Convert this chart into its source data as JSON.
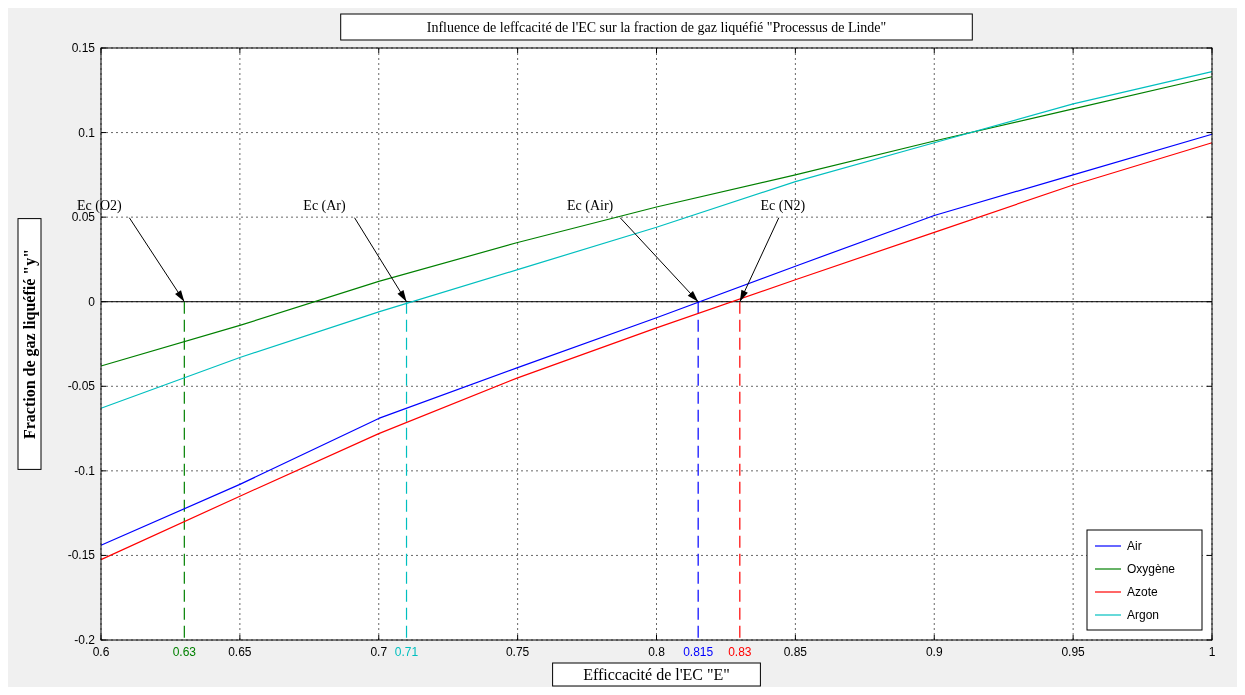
{
  "chart_data": {
    "type": "line",
    "title": "Influence de leffcacité de l'EC sur la fraction de gaz liquéfié \"Processus de Linde\"",
    "xlabel": "Efficcacité de l'EC \"E\"",
    "ylabel": "Fraction de gaz liquéfié \"y\"",
    "x": [
      0.6,
      0.65,
      0.7,
      0.75,
      0.8,
      0.85,
      0.9,
      0.95,
      1
    ],
    "series": [
      {
        "name": "Air",
        "color": "#0000ff",
        "values": [
          -0.144,
          -0.108,
          -0.069,
          -0.039,
          -0.0095,
          0.021,
          0.051,
          0.075,
          0.099
        ]
      },
      {
        "name": "Oxygène",
        "color": "#008000",
        "values": [
          -0.038,
          -0.014,
          0.012,
          0.035,
          0.056,
          0.075,
          0.095,
          0.114,
          0.133
        ]
      },
      {
        "name": "Azote",
        "color": "#ff0000",
        "values": [
          -0.1525,
          -0.115,
          -0.078,
          -0.045,
          -0.0155,
          0.013,
          0.041,
          0.069,
          0.094
        ]
      },
      {
        "name": "Argon",
        "color": "#00bfbf",
        "values": [
          -0.063,
          -0.033,
          -0.006,
          0.019,
          0.044,
          0.071,
          0.094,
          0.117,
          0.136
        ]
      }
    ],
    "xlim": [
      0.6,
      1
    ],
    "xticks": [
      0.6,
      0.65,
      0.7,
      0.75,
      0.8,
      0.85,
      0.9,
      0.95,
      1
    ],
    "ylim": [
      -0.2,
      0.15
    ],
    "yticks": [
      -0.2,
      -0.15,
      -0.1,
      -0.05,
      0,
      0.05,
      0.1,
      0.15
    ],
    "grid": true,
    "legend": "bottom right",
    "marker": "none",
    "line_style": "solid",
    "ref_lines": [
      {
        "axis": "y",
        "value": 0,
        "color": "#000000",
        "line_style": "solid"
      },
      {
        "axis": "x",
        "value": 0.63,
        "label": "0.63",
        "color": "#008000",
        "line_style": "dashed"
      },
      {
        "axis": "x",
        "value": 0.71,
        "label": "0.71",
        "color": "#00bfbf",
        "line_style": "dashed"
      },
      {
        "axis": "x",
        "value": 0.815,
        "label": "0.815",
        "color": "#0000ff",
        "line_style": "dashed"
      },
      {
        "axis": "x",
        "value": 0.83,
        "label": "0.83",
        "color": "#ff0000",
        "line_style": "dashed"
      }
    ],
    "annotations": [
      {
        "text": "Ec (O2)",
        "x": 0.63,
        "y": 0
      },
      {
        "text": "Ec (Ar)",
        "x": 0.71,
        "y": 0
      },
      {
        "text": "Ec (Air)",
        "x": 0.815,
        "y": 0
      },
      {
        "text": "Ec (N2)",
        "x": 0.83,
        "y": 0
      }
    ]
  }
}
